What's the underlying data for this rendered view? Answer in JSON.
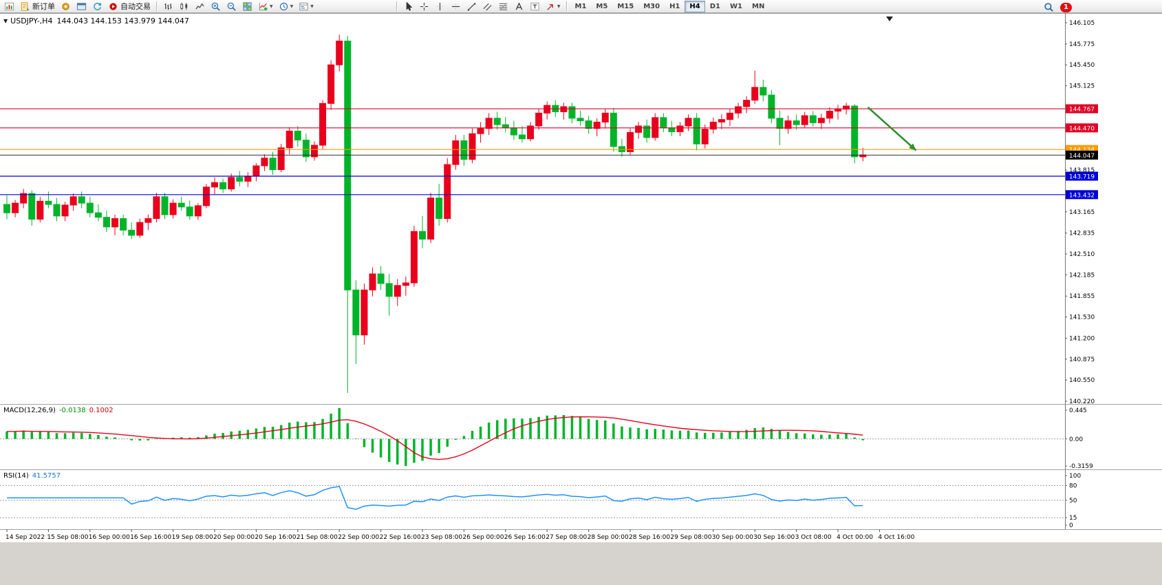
{
  "toolbar": {
    "active_timeframe": "H4",
    "groups": [
      {
        "name": "trade-group",
        "items": [
          {
            "name": "new-chart-button",
            "icon": "new-chart"
          },
          {
            "name": "new-order-button",
            "icon": "new-order",
            "label": "新订单"
          },
          {
            "name": "scripts-button",
            "icon": "scripts"
          },
          {
            "name": "chart-window-button",
            "icon": "window"
          },
          {
            "name": "refresh-button",
            "icon": "refresh"
          },
          {
            "name": "auto-trading-button",
            "icon": "autotrade",
            "label": "自动交易"
          }
        ]
      },
      {
        "name": "chart-type-group",
        "items": [
          {
            "name": "bar-chart-button",
            "icon": "bars"
          },
          {
            "name": "candlestick-chart-button",
            "icon": "candles"
          },
          {
            "name": "line-chart-button",
            "icon": "linechart"
          },
          {
            "name": "zoom-in-button",
            "icon": "zoom-in"
          },
          {
            "name": "zoom-out-button",
            "icon": "zoom-out"
          },
          {
            "name": "tile-windows-button",
            "icon": "tile"
          },
          {
            "name": "indicators-button",
            "icon": "indicators",
            "caret": true
          },
          {
            "name": "periods-button",
            "icon": "periods",
            "caret": true
          },
          {
            "name": "templates-button",
            "icon": "templates",
            "caret": true
          }
        ]
      },
      {
        "name": "spacer"
      },
      {
        "name": "drawing-tools-group",
        "items": [
          {
            "name": "cursor-button",
            "icon": "cursor"
          },
          {
            "name": "crosshair-button",
            "icon": "crosshair"
          },
          {
            "name": "vertical-line-button",
            "icon": "vline"
          },
          {
            "name": "horizontal-line-button",
            "icon": "hline"
          },
          {
            "name": "trendline-button",
            "icon": "trendline"
          },
          {
            "name": "channel-button",
            "icon": "channel"
          },
          {
            "name": "fibonacci-button",
            "icon": "fibo"
          },
          {
            "name": "text-button",
            "icon": "text-a"
          },
          {
            "name": "label-button",
            "icon": "label-t"
          },
          {
            "name": "arrows-button",
            "icon": "arrows",
            "caret": true
          }
        ]
      },
      {
        "name": "timeframes-group",
        "timeframes": [
          "M1",
          "M5",
          "M15",
          "M30",
          "H1",
          "H4",
          "D1",
          "W1",
          "MN"
        ]
      }
    ],
    "right": {
      "notification_count": "1"
    }
  },
  "chart": {
    "symbol_period": "USDJPY-,H4",
    "ohlc_text": "144.043 144.153 143.979 144.047"
  },
  "indicators": {
    "macd": {
      "name": "MACD(12,26,9)",
      "value_main": "-0.0138",
      "value_signal": "0.1002",
      "axis_labels": [
        "0.445",
        "0.00",
        "-0.3159"
      ]
    },
    "rsi": {
      "name": "RSI(14)",
      "value": "41.5757",
      "axis_values": [
        100,
        80,
        50,
        15,
        0
      ],
      "levels": [
        80,
        50,
        15
      ]
    }
  },
  "chart_data": {
    "type": "candlestick",
    "symbol": "USDJPY",
    "timeframe": "H4",
    "current_quote": {
      "open": 144.043,
      "high": 144.153,
      "low": 143.979,
      "close": 144.047
    },
    "y_range": [
      140.22,
      146.105
    ],
    "price_axis_ticks": [
      "146.105",
      "145.775",
      "145.450",
      "145.125",
      "143.815",
      "143.165",
      "142.835",
      "142.510",
      "142.185",
      "141.855",
      "141.530",
      "141.200",
      "140.875",
      "140.550",
      "140.220"
    ],
    "colors": {
      "bull": "#e8001c",
      "bear": "#00b42a",
      "macd_histogram": "#00b42a",
      "macd_signal": "#e8001c",
      "rsi_line": "#1e90ff",
      "arrow": "#2f8f2f"
    },
    "candles": [
      [
        143.28,
        143.42,
        143.05,
        143.15
      ],
      [
        143.15,
        143.35,
        143.08,
        143.3
      ],
      [
        143.3,
        143.52,
        143.22,
        143.45
      ],
      [
        143.45,
        143.5,
        142.95,
        143.05
      ],
      [
        143.05,
        143.4,
        143.0,
        143.33
      ],
      [
        143.33,
        143.48,
        143.22,
        143.28
      ],
      [
        143.28,
        143.38,
        143.02,
        143.1
      ],
      [
        143.1,
        143.32,
        143.02,
        143.27
      ],
      [
        143.27,
        143.45,
        143.18,
        143.4
      ],
      [
        143.4,
        143.48,
        143.22,
        143.3
      ],
      [
        143.3,
        143.4,
        143.08,
        143.15
      ],
      [
        143.15,
        143.28,
        143.02,
        143.08
      ],
      [
        143.08,
        143.18,
        142.85,
        142.93
      ],
      [
        142.93,
        143.12,
        142.8,
        143.06
      ],
      [
        143.06,
        143.12,
        142.8,
        142.88
      ],
      [
        142.88,
        143.0,
        142.74,
        142.8
      ],
      [
        142.8,
        143.06,
        142.76,
        143.0
      ],
      [
        143.0,
        143.12,
        142.88,
        143.06
      ],
      [
        143.06,
        143.46,
        143.0,
        143.4
      ],
      [
        143.4,
        143.46,
        143.05,
        143.12
      ],
      [
        143.12,
        143.36,
        143.06,
        143.3
      ],
      [
        143.3,
        143.4,
        143.18,
        143.24
      ],
      [
        143.24,
        143.34,
        143.04,
        143.1
      ],
      [
        143.1,
        143.3,
        143.04,
        143.26
      ],
      [
        143.26,
        143.6,
        143.22,
        143.55
      ],
      [
        143.55,
        143.7,
        143.44,
        143.62
      ],
      [
        143.62,
        143.68,
        143.46,
        143.52
      ],
      [
        143.52,
        143.76,
        143.48,
        143.7
      ],
      [
        143.7,
        143.8,
        143.56,
        143.64
      ],
      [
        143.64,
        143.78,
        143.55,
        143.72
      ],
      [
        143.72,
        143.92,
        143.64,
        143.88
      ],
      [
        143.88,
        144.06,
        143.8,
        144.0
      ],
      [
        144.0,
        144.1,
        143.74,
        143.82
      ],
      [
        143.82,
        144.22,
        143.78,
        144.16
      ],
      [
        144.16,
        144.48,
        144.06,
        144.42
      ],
      [
        144.42,
        144.5,
        144.18,
        144.28
      ],
      [
        144.28,
        144.38,
        143.94,
        144.02
      ],
      [
        144.02,
        144.26,
        143.96,
        144.2
      ],
      [
        144.2,
        144.9,
        144.14,
        144.85
      ],
      [
        144.85,
        145.52,
        144.75,
        145.45
      ],
      [
        145.45,
        145.92,
        145.35,
        145.82
      ],
      [
        145.82,
        145.9,
        140.35,
        141.95
      ],
      [
        141.95,
        142.1,
        140.8,
        141.25
      ],
      [
        141.25,
        142.05,
        141.1,
        141.95
      ],
      [
        141.95,
        142.3,
        141.85,
        142.2
      ],
      [
        142.2,
        142.32,
        141.95,
        142.05
      ],
      [
        142.05,
        142.2,
        141.55,
        141.85
      ],
      [
        141.85,
        142.12,
        141.7,
        142.02
      ],
      [
        142.02,
        142.16,
        141.86,
        142.06
      ],
      [
        142.06,
        142.95,
        142.0,
        142.86
      ],
      [
        142.86,
        143.1,
        142.6,
        142.74
      ],
      [
        142.74,
        143.46,
        142.68,
        143.38
      ],
      [
        143.38,
        143.6,
        142.95,
        143.06
      ],
      [
        143.06,
        144.0,
        143.0,
        143.9
      ],
      [
        143.9,
        144.36,
        143.82,
        144.27
      ],
      [
        144.27,
        144.36,
        143.88,
        143.98
      ],
      [
        143.98,
        144.46,
        143.92,
        144.38
      ],
      [
        144.38,
        144.56,
        144.24,
        144.46
      ],
      [
        144.46,
        144.7,
        144.36,
        144.62
      ],
      [
        144.62,
        144.72,
        144.44,
        144.52
      ],
      [
        144.52,
        144.64,
        144.4,
        144.47
      ],
      [
        144.47,
        144.58,
        144.28,
        144.36
      ],
      [
        144.36,
        144.5,
        144.24,
        144.3
      ],
      [
        144.3,
        144.56,
        144.26,
        144.5
      ],
      [
        144.5,
        144.76,
        144.44,
        144.7
      ],
      [
        144.7,
        144.88,
        144.6,
        144.82
      ],
      [
        144.82,
        144.9,
        144.64,
        144.72
      ],
      [
        144.72,
        144.86,
        144.6,
        144.8
      ],
      [
        144.8,
        144.86,
        144.54,
        144.62
      ],
      [
        144.62,
        144.74,
        144.5,
        144.58
      ],
      [
        144.58,
        144.66,
        144.38,
        144.46
      ],
      [
        144.46,
        144.62,
        144.34,
        144.56
      ],
      [
        144.56,
        144.76,
        144.46,
        144.7
      ],
      [
        144.7,
        144.78,
        144.1,
        144.18
      ],
      [
        144.18,
        144.3,
        144.02,
        144.1
      ],
      [
        144.1,
        144.46,
        144.05,
        144.4
      ],
      [
        144.4,
        144.56,
        144.3,
        144.5
      ],
      [
        144.5,
        144.6,
        144.24,
        144.32
      ],
      [
        144.32,
        144.7,
        144.27,
        144.63
      ],
      [
        144.63,
        144.7,
        144.4,
        144.47
      ],
      [
        144.47,
        144.58,
        144.34,
        144.41
      ],
      [
        144.41,
        144.56,
        144.34,
        144.5
      ],
      [
        144.5,
        144.68,
        144.42,
        144.62
      ],
      [
        144.62,
        144.7,
        144.12,
        144.22
      ],
      [
        144.22,
        144.52,
        144.15,
        144.45
      ],
      [
        144.45,
        144.63,
        144.38,
        144.56
      ],
      [
        144.56,
        144.68,
        144.45,
        144.6
      ],
      [
        144.6,
        144.76,
        144.5,
        144.7
      ],
      [
        144.7,
        144.86,
        144.62,
        144.8
      ],
      [
        144.8,
        144.96,
        144.7,
        144.9
      ],
      [
        144.9,
        145.36,
        144.84,
        145.1
      ],
      [
        145.1,
        145.22,
        144.88,
        144.98
      ],
      [
        144.98,
        145.06,
        144.54,
        144.62
      ],
      [
        144.62,
        144.74,
        144.2,
        144.46
      ],
      [
        144.46,
        144.66,
        144.38,
        144.58
      ],
      [
        144.58,
        144.68,
        144.44,
        144.52
      ],
      [
        144.52,
        144.72,
        144.47,
        144.66
      ],
      [
        144.66,
        144.73,
        144.49,
        144.55
      ],
      [
        144.55,
        144.69,
        144.45,
        144.62
      ],
      [
        144.62,
        144.79,
        144.54,
        144.73
      ],
      [
        144.73,
        144.83,
        144.6,
        144.76
      ],
      [
        144.76,
        144.86,
        144.68,
        144.81
      ],
      [
        144.81,
        144.84,
        143.92,
        144.02
      ],
      [
        144.02,
        144.16,
        143.95,
        144.05
      ]
    ],
    "horizontal_lines": [
      {
        "price": 144.767,
        "color": "#e00025",
        "label": "144.767"
      },
      {
        "price": 144.47,
        "color": "#e00025",
        "label": "144.470"
      },
      {
        "price": 144.134,
        "color": "#ff9c00",
        "label": "144.134"
      },
      {
        "price": 143.719,
        "color": "#0000d4",
        "label": "143.719"
      },
      {
        "price": 143.432,
        "color": "#0000d4",
        "label": "143.432"
      }
    ],
    "current_price_line": {
      "price": 144.047,
      "color": "#000000",
      "label": "144.047"
    },
    "trend_arrow": {
      "from_index": 103.6,
      "from_price": 144.79,
      "to_index": 109.4,
      "to_price": 144.12
    },
    "time_labels": [
      "14 Sep 2022",
      "15 Sep 08:00",
      "16 Sep 00:00",
      "16 Sep 16:00",
      "19 Sep 08:00",
      "20 Sep 00:00",
      "20 Sep 16:00",
      "21 Sep 08:00",
      "22 Sep 00:00",
      "22 Sep 16:00",
      "23 Sep 08:00",
      "26 Sep 00:00",
      "26 Sep 16:00",
      "27 Sep 08:00",
      "28 Sep 00:00",
      "28 Sep 16:00",
      "29 Sep 08:00",
      "30 Sep 00:00",
      "30 Sep 16:00",
      "3 Oct 08:00",
      "4 Oct 00:00",
      "4 Oct 16:00"
    ],
    "label_every_n_candles": 5
  }
}
